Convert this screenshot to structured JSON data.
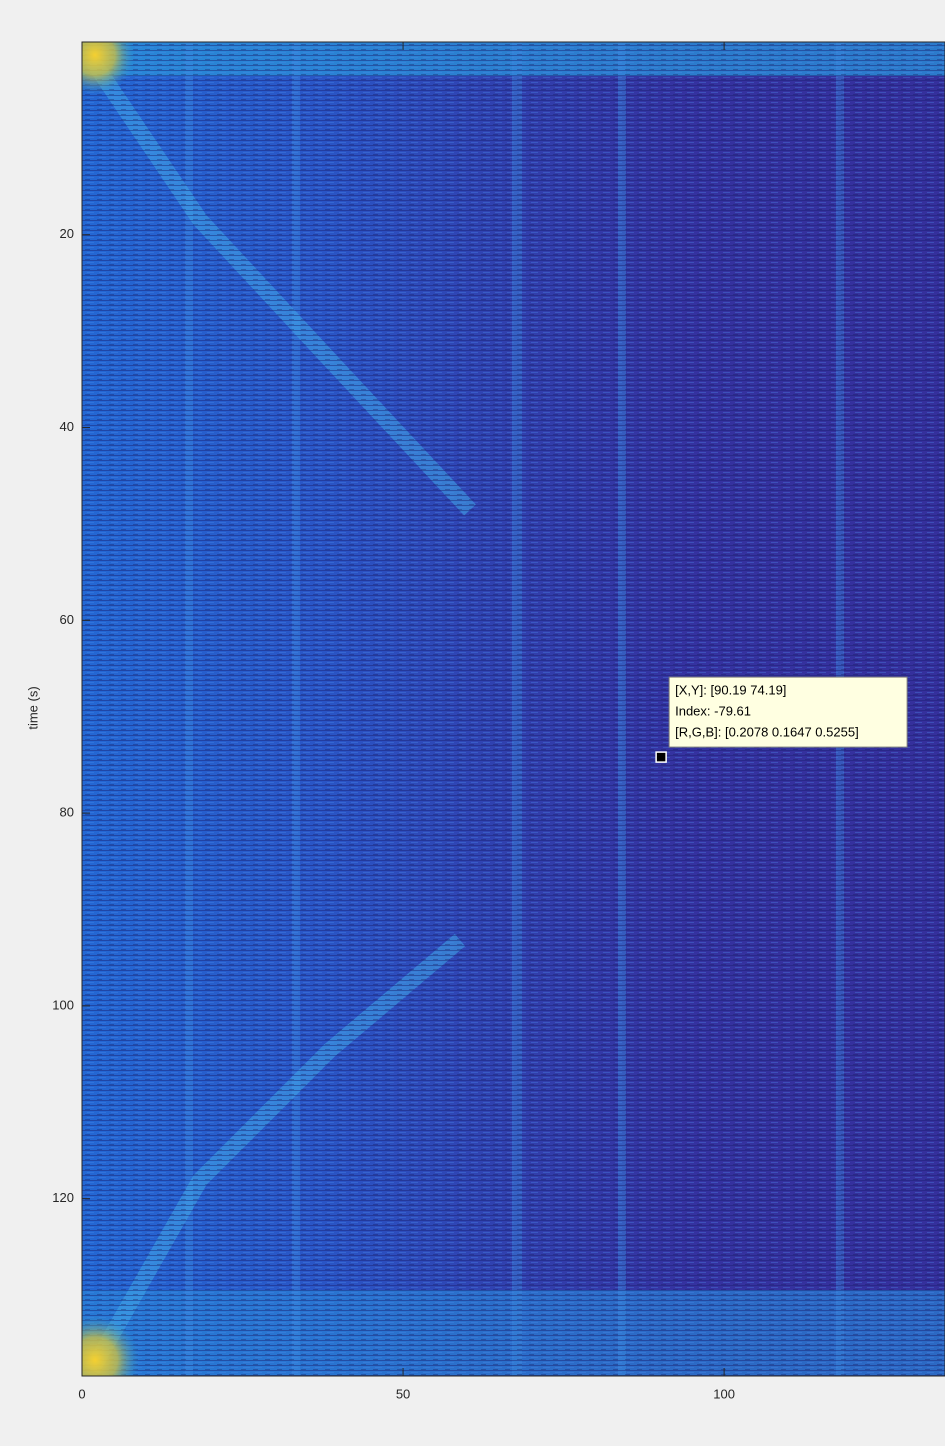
{
  "chart_data": {
    "type": "heatmap",
    "y_label": "time (s)",
    "xlim": [
      0,
      134.4
    ],
    "xticks": [
      0,
      50,
      100
    ],
    "ylim": [
      0,
      138.4
    ],
    "yticks": [
      20,
      40,
      60,
      80,
      100,
      120
    ],
    "y_reversed": true,
    "datatip": {
      "x": 90.19,
      "y": 74.19,
      "lines": [
        "[X,Y]: [90.19 74.19]",
        "Index: -79.61",
        "[R,G,B]: [0.2078 0.1647 0.5255]"
      ]
    }
  }
}
